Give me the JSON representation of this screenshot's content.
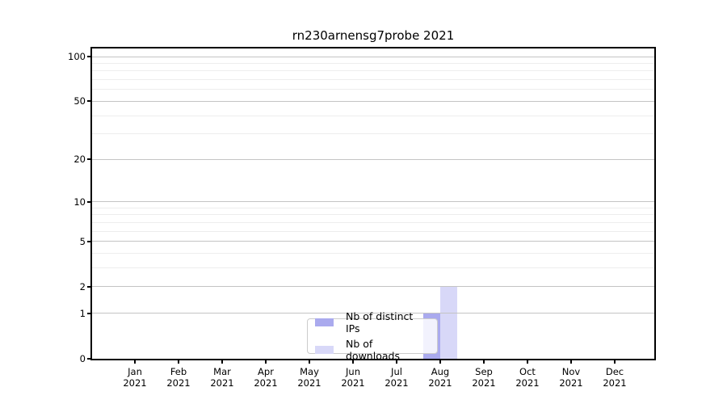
{
  "chart_data": {
    "type": "bar",
    "title": "rn230arnensg7probe 2021",
    "categories": [
      "Jan 2021",
      "Feb 2021",
      "Mar 2021",
      "Apr 2021",
      "May 2021",
      "Jun 2021",
      "Jul 2021",
      "Aug 2021",
      "Sep 2021",
      "Oct 2021",
      "Nov 2021",
      "Dec 2021"
    ],
    "series": [
      {
        "name": "Nb of distinct IPs",
        "color": "#aaaaee",
        "values": [
          0,
          0,
          0,
          0,
          0,
          0,
          0,
          1,
          0,
          0,
          0,
          0
        ]
      },
      {
        "name": "Nb of downloads",
        "color": "#d8d8f8",
        "values": [
          0,
          0,
          0,
          0,
          0,
          0,
          0,
          2,
          0,
          0,
          0,
          0
        ]
      }
    ],
    "xlabel": "",
    "ylabel": "",
    "yscale": "log1p",
    "ylim": [
      0,
      113
    ],
    "y_major_ticks": [
      100,
      50,
      20,
      10,
      5,
      2,
      1,
      0
    ],
    "y_minor_gridlines": [
      3,
      4,
      6,
      7,
      8,
      9,
      30,
      40,
      60,
      70,
      80,
      90
    ],
    "grid": "horizontal",
    "legend_position": "lower center"
  }
}
